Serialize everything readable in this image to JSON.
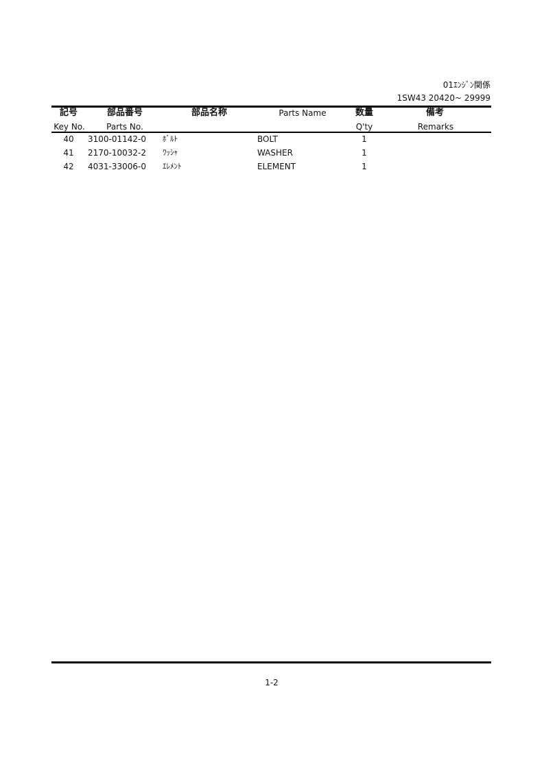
{
  "header": {
    "section": "01ｴﾝｼﾞﾝ関係",
    "model_range": "1SW43 20420~ 29999"
  },
  "columns": {
    "key_jp": "記号",
    "key_en": "Key No.",
    "partno_jp": "部品番号",
    "partno_en": "Parts No.",
    "name_jp": "部品名称",
    "name_en": "Parts Name",
    "qty_jp": "数量",
    "qty_en": "Q'ty",
    "remarks_jp": "備考",
    "remarks_en": "Remarks"
  },
  "rows": [
    {
      "key": "40",
      "part_no": "3100-01142-0",
      "name_jp": "ﾎﾞﾙﾄ",
      "name_en": "BOLT",
      "qty": "1",
      "remarks": ""
    },
    {
      "key": "41",
      "part_no": "2170-10032-2",
      "name_jp": "ﾜｯｼｬ",
      "name_en": "WASHER",
      "qty": "1",
      "remarks": ""
    },
    {
      "key": "42",
      "part_no": "4031-33006-0",
      "name_jp": "ｴﾚﾒﾝﾄ",
      "name_en": "ELEMENT",
      "qty": "1",
      "remarks": ""
    }
  ],
  "footer": {
    "page": "1-2"
  }
}
